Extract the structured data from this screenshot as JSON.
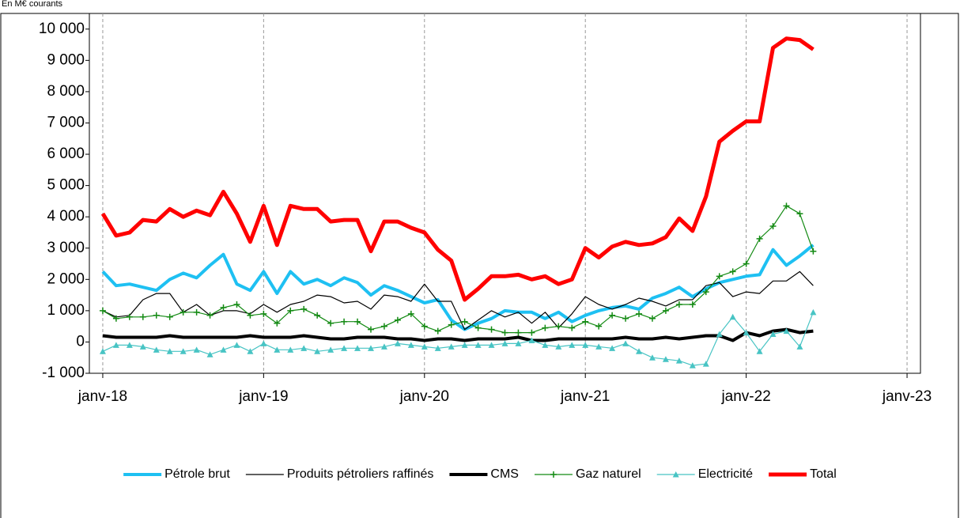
{
  "chart_data": {
    "type": "line",
    "subtitle": "En M€ courants",
    "x": [
      "2018-01",
      "2018-02",
      "2018-03",
      "2018-04",
      "2018-05",
      "2018-06",
      "2018-07",
      "2018-08",
      "2018-09",
      "2018-10",
      "2018-11",
      "2018-12",
      "2019-01",
      "2019-02",
      "2019-03",
      "2019-04",
      "2019-05",
      "2019-06",
      "2019-07",
      "2019-08",
      "2019-09",
      "2019-10",
      "2019-11",
      "2019-12",
      "2020-01",
      "2020-02",
      "2020-03",
      "2020-04",
      "2020-05",
      "2020-06",
      "2020-07",
      "2020-08",
      "2020-09",
      "2020-10",
      "2020-11",
      "2020-12",
      "2021-01",
      "2021-02",
      "2021-03",
      "2021-04",
      "2021-05",
      "2021-06",
      "2021-07",
      "2021-08",
      "2021-09",
      "2021-10",
      "2021-11",
      "2021-12",
      "2022-01",
      "2022-02",
      "2022-03",
      "2022-04",
      "2022-05",
      "2022-06"
    ],
    "xlim": [
      "2017-12",
      "2023-02"
    ],
    "xticks": [
      {
        "value": "2018-01",
        "label": "janv-18"
      },
      {
        "value": "2019-01",
        "label": "janv-19"
      },
      {
        "value": "2020-01",
        "label": "janv-20"
      },
      {
        "value": "2021-01",
        "label": "janv-21"
      },
      {
        "value": "2022-01",
        "label": "janv-22"
      },
      {
        "value": "2023-01",
        "label": "janv-23"
      }
    ],
    "ylim": [
      -1000,
      10500
    ],
    "yticks": [
      {
        "value": -1000,
        "label": "-1 000"
      },
      0,
      {
        "value": 1000,
        "label": "1 000"
      },
      {
        "value": 2000,
        "label": "2 000"
      },
      {
        "value": 3000,
        "label": "3 000"
      },
      {
        "value": 4000,
        "label": "4 000"
      },
      {
        "value": 5000,
        "label": "5 000"
      },
      {
        "value": 6000,
        "label": "6 000"
      },
      {
        "value": 7000,
        "label": "7 000"
      },
      {
        "value": 8000,
        "label": "8 000"
      },
      {
        "value": 9000,
        "label": "9 000"
      },
      {
        "value": 10000,
        "label": "10 000"
      }
    ],
    "grid": "x",
    "legend": "bottom",
    "series": [
      {
        "name": "Pétrole brut",
        "color": "#1ec0f2",
        "line_width": 4,
        "marker": "none",
        "values": [
          2250,
          1800,
          1850,
          1750,
          1650,
          2000,
          2200,
          2050,
          2450,
          2800,
          1850,
          1650,
          2250,
          1550,
          2250,
          1850,
          2000,
          1800,
          2050,
          1900,
          1500,
          1800,
          1650,
          1450,
          1250,
          1350,
          700,
          400,
          600,
          750,
          1000,
          950,
          950,
          750,
          950,
          650,
          850,
          1000,
          1100,
          1150,
          1050,
          1400,
          1550,
          1750,
          1450,
          1700,
          1900,
          2000,
          2100,
          2150,
          2950,
          2450,
          2750,
          3100
        ]
      },
      {
        "name": "Produits pétroliers raffinés",
        "color": "#000000",
        "line_width": 1.2,
        "marker": "none",
        "values": [
          1000,
          800,
          850,
          1350,
          1550,
          1550,
          950,
          1200,
          850,
          1000,
          1000,
          900,
          1200,
          950,
          1200,
          1300,
          1500,
          1450,
          1250,
          1300,
          1050,
          1500,
          1450,
          1300,
          1850,
          1300,
          1300,
          400,
          700,
          1000,
          800,
          950,
          600,
          950,
          450,
          900,
          1450,
          1200,
          1050,
          1200,
          1400,
          1300,
          1150,
          1350,
          1350,
          1800,
          1900,
          1450,
          1600,
          1550,
          1950,
          1950,
          2250,
          1800
        ]
      },
      {
        "name": "CMS",
        "color": "#000000",
        "line_width": 4,
        "marker": "none",
        "values": [
          200,
          150,
          150,
          150,
          150,
          200,
          150,
          150,
          150,
          150,
          150,
          200,
          150,
          150,
          150,
          200,
          150,
          100,
          100,
          150,
          150,
          150,
          100,
          100,
          50,
          100,
          100,
          50,
          100,
          100,
          100,
          150,
          50,
          50,
          100,
          100,
          100,
          100,
          100,
          150,
          100,
          100,
          150,
          100,
          150,
          200,
          200,
          50,
          300,
          200,
          350,
          400,
          300,
          350
        ]
      },
      {
        "name": "Gaz naturel",
        "color": "#138a13",
        "line_width": 1.2,
        "marker": "plus",
        "values": [
          1000,
          750,
          800,
          800,
          850,
          800,
          950,
          950,
          850,
          1100,
          1200,
          850,
          900,
          600,
          1000,
          1050,
          850,
          600,
          650,
          650,
          400,
          500,
          700,
          900,
          500,
          350,
          550,
          650,
          450,
          400,
          300,
          300,
          300,
          450,
          500,
          450,
          650,
          500,
          850,
          750,
          900,
          750,
          1000,
          1200,
          1200,
          1600,
          2100,
          2250,
          2500,
          3300,
          3700,
          4350,
          4100,
          2900
        ]
      },
      {
        "name": "Electricité",
        "color": "#48c4c4",
        "line_width": 1.2,
        "marker": "triangle",
        "values": [
          -300,
          -100,
          -100,
          -150,
          -250,
          -300,
          -300,
          -250,
          -400,
          -250,
          -100,
          -300,
          -50,
          -250,
          -250,
          -200,
          -300,
          -250,
          -200,
          -200,
          -200,
          -150,
          -50,
          -100,
          -150,
          -200,
          -150,
          -100,
          -100,
          -100,
          -50,
          -50,
          50,
          -100,
          -150,
          -100,
          -100,
          -150,
          -200,
          -50,
          -300,
          -500,
          -550,
          -600,
          -750,
          -700,
          250,
          800,
          300,
          -300,
          250,
          350,
          -150,
          950
        ]
      },
      {
        "name": "Total",
        "color": "#ff0000",
        "line_width": 5,
        "marker": "none",
        "values": [
          4100,
          3400,
          3500,
          3900,
          3850,
          4250,
          4000,
          4200,
          4050,
          4800,
          4100,
          3200,
          4350,
          3100,
          4350,
          4250,
          4250,
          3850,
          3900,
          3900,
          2900,
          3850,
          3850,
          3650,
          3500,
          2950,
          2600,
          1350,
          1700,
          2100,
          2100,
          2150,
          2000,
          2100,
          1850,
          2000,
          3000,
          2700,
          3050,
          3200,
          3100,
          3150,
          3350,
          3950,
          3550,
          4650,
          6400,
          6750,
          7050,
          7050,
          9400,
          9700,
          9650,
          9350
        ]
      }
    ]
  }
}
